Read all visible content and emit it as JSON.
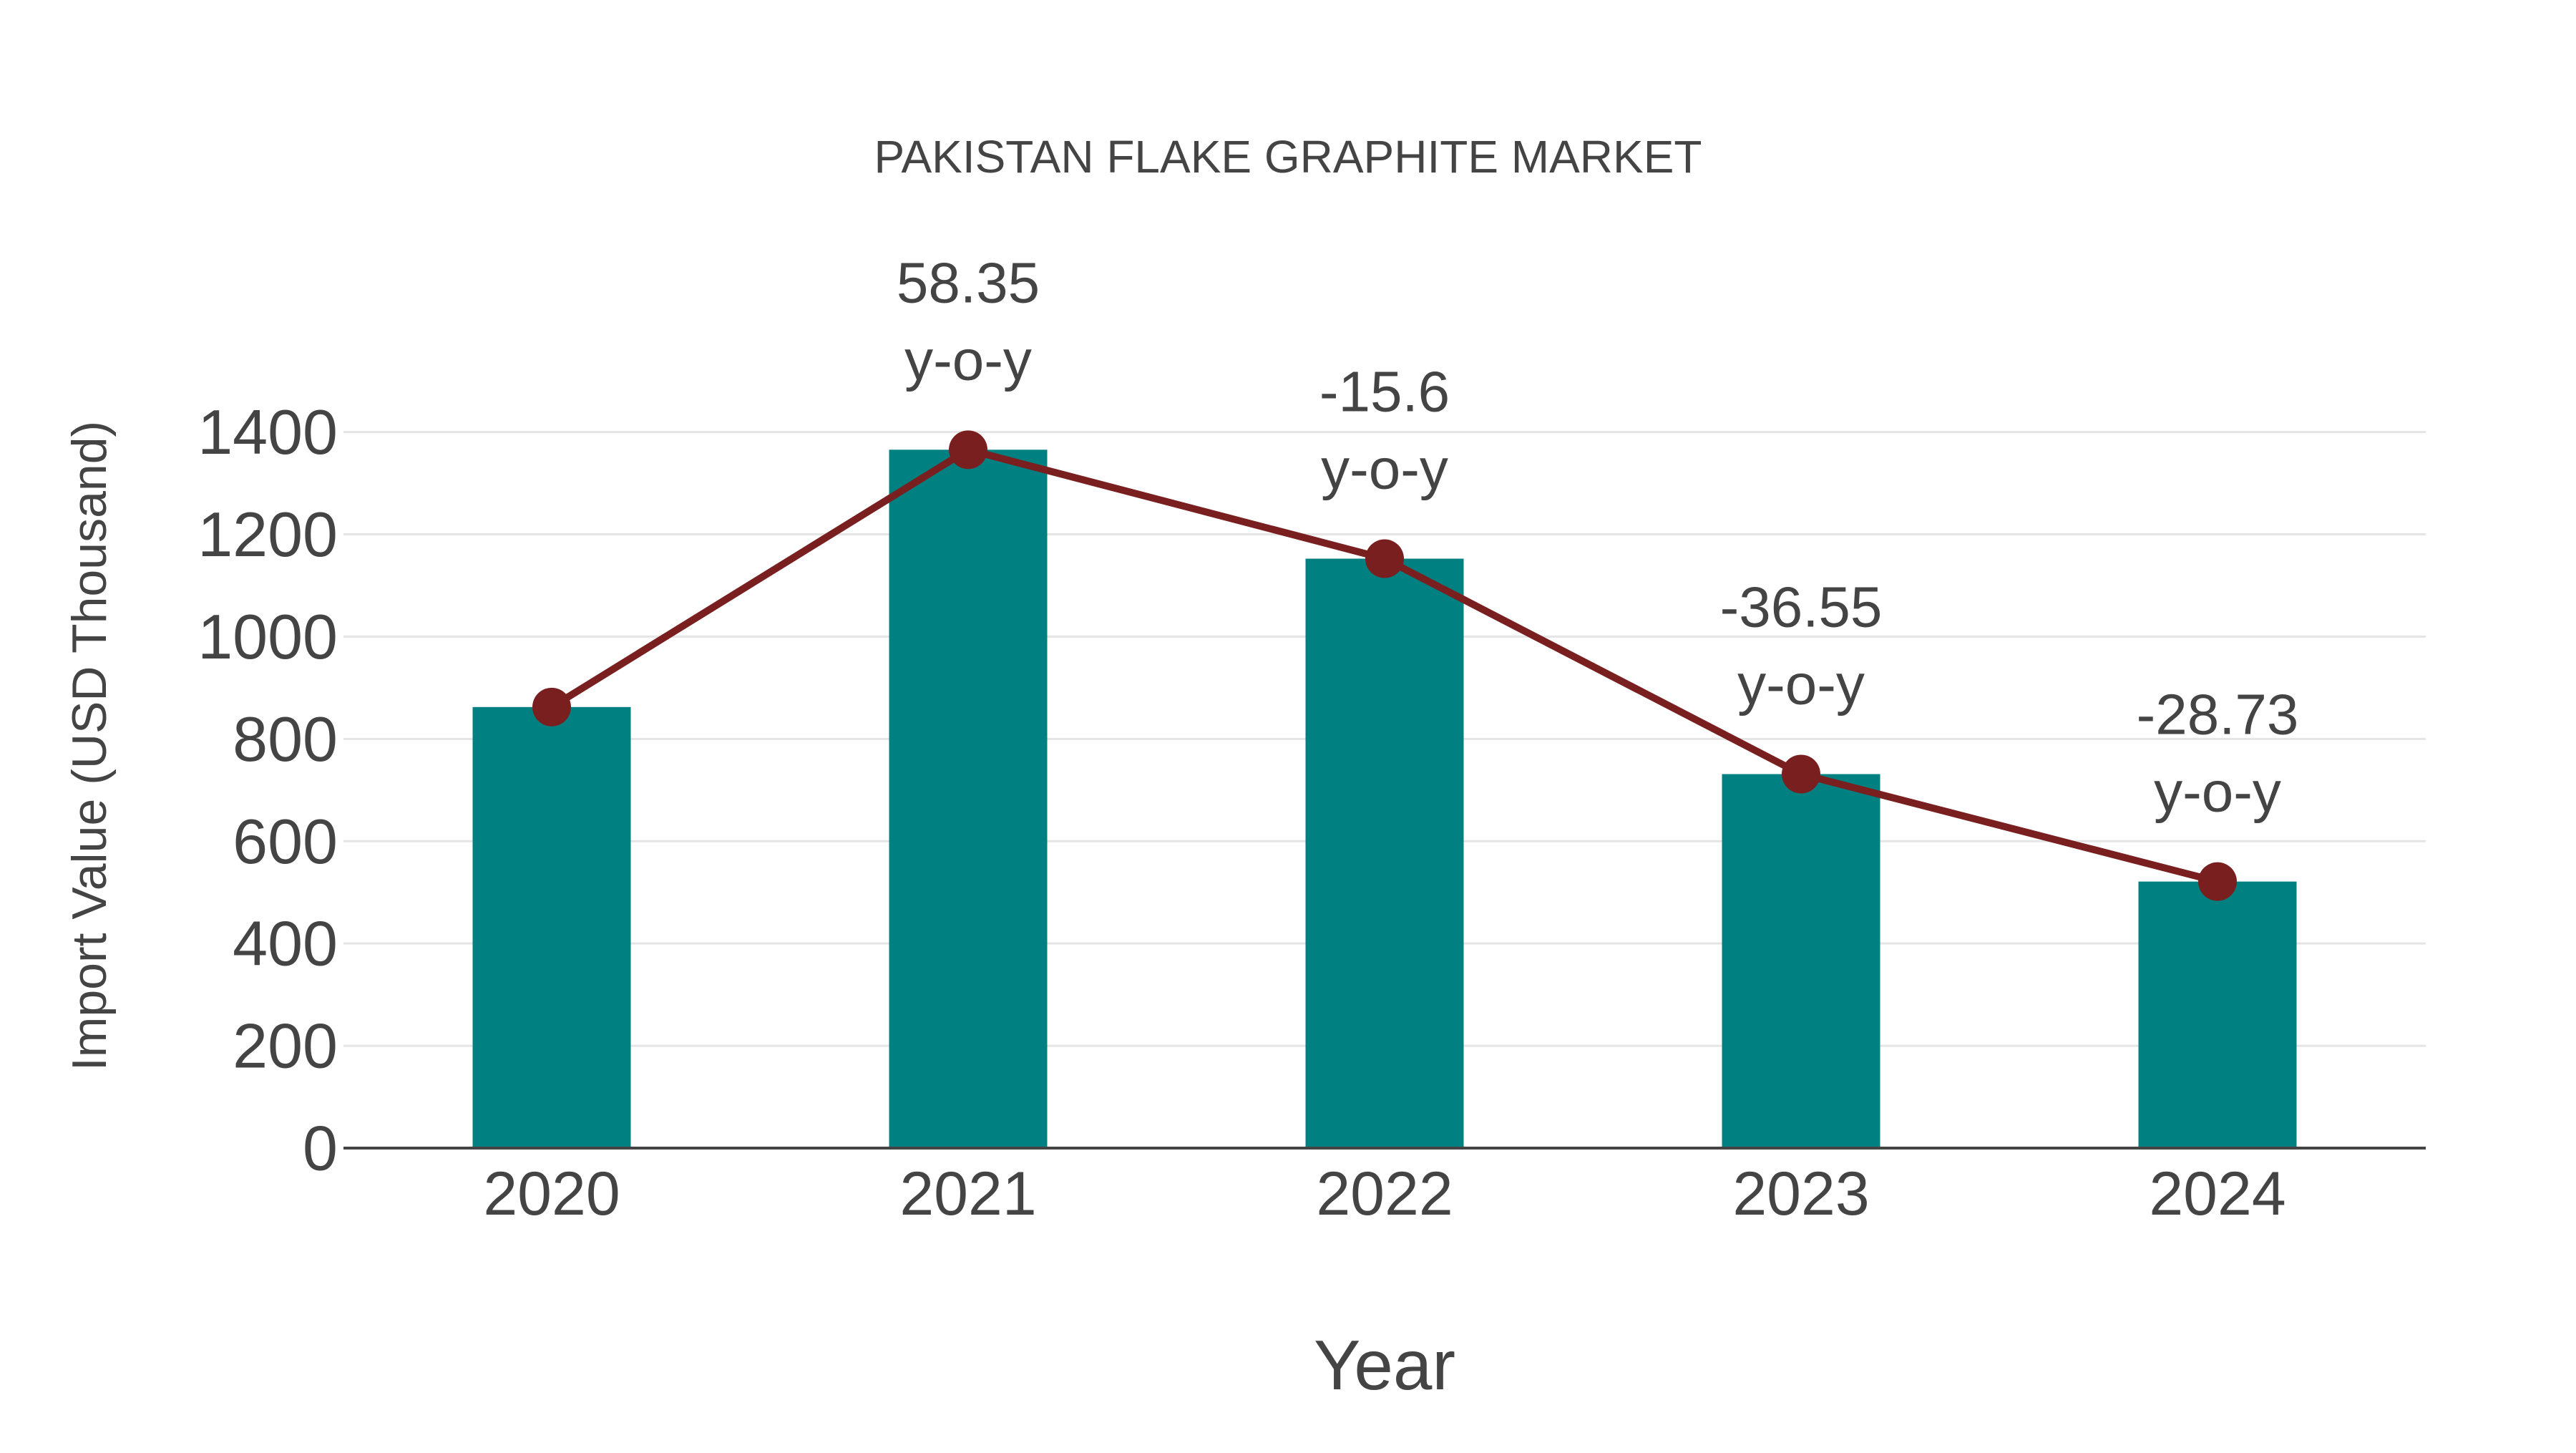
{
  "chart_data": {
    "type": "bar",
    "title": "PAKISTAN FLAKE GRAPHITE MARKET",
    "xlabel": "Year",
    "ylabel": "Import Value (USD Thousand)",
    "categories": [
      "2020",
      "2021",
      "2022",
      "2023",
      "2024"
    ],
    "series": [
      {
        "name": "Import Value",
        "type": "bar",
        "color": "#008080",
        "values": [
          862.3,
          1365.4,
          1152.4,
          731.2,
          521.1
        ]
      },
      {
        "name": "Import Value Trend",
        "type": "line",
        "color": "#7a1f1f",
        "marker": "circle",
        "values": [
          862.3,
          1365.4,
          1152.4,
          731.2,
          521.1
        ]
      }
    ],
    "annotations": [
      {
        "category": "2021",
        "value_label": "58.35",
        "suffix": "y-o-y"
      },
      {
        "category": "2022",
        "value_label": "-15.6",
        "suffix": "y-o-y"
      },
      {
        "category": "2023",
        "value_label": "-36.55",
        "suffix": "y-o-y"
      },
      {
        "category": "2024",
        "value_label": "-28.73",
        "suffix": "y-o-y"
      }
    ],
    "yticks": [
      0,
      200,
      400,
      600,
      800,
      1000,
      1200,
      1400
    ],
    "ylim": [
      0,
      1400
    ],
    "grid": true,
    "legend": "none"
  },
  "colors": {
    "bar": "#008080",
    "line": "#7a1f1f",
    "text": "#444444",
    "grid": "#e5e5e5",
    "axis": "#444444"
  }
}
